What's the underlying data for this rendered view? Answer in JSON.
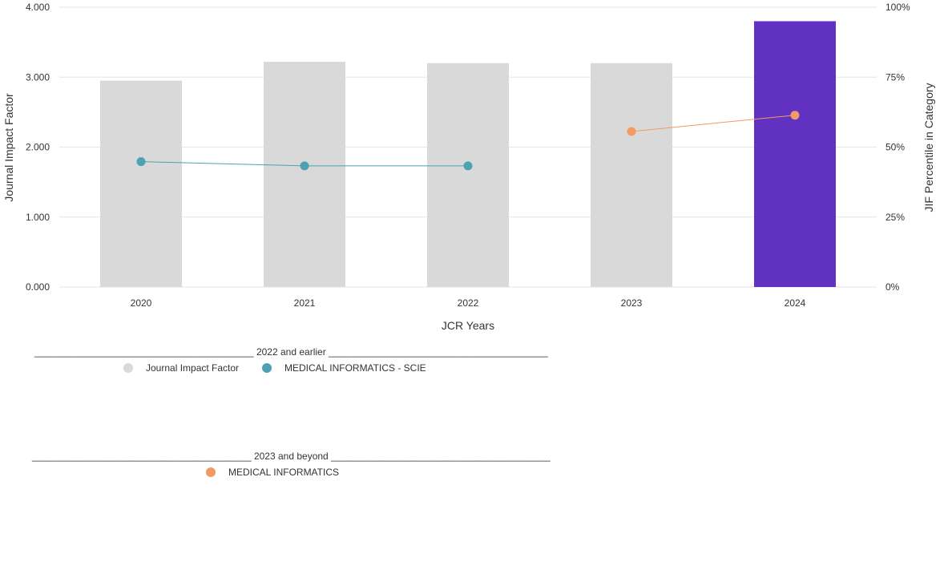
{
  "chart_data": {
    "type": "bar",
    "categories": [
      "2020",
      "2021",
      "2022",
      "2023",
      "2024"
    ],
    "xlabel": "JCR Years",
    "ylabel": "Journal Impact Factor",
    "ylabel_right": "JIF Percentile in Category",
    "ylim": [
      0,
      4
    ],
    "ylim_right": [
      0,
      100
    ],
    "y_ticks": [
      "0.000",
      "1.000",
      "2.000",
      "3.000",
      "4.000"
    ],
    "y_ticks_right": [
      "0%",
      "25%",
      "50%",
      "75%",
      "100%"
    ],
    "grid": true,
    "bars": {
      "name": "Journal Impact Factor",
      "values": [
        2.95,
        3.22,
        3.2,
        3.2,
        3.8
      ],
      "colors": [
        "#d9d9d9",
        "#d9d9d9",
        "#d9d9d9",
        "#d9d9d9",
        "#6131c2"
      ]
    },
    "series": [
      {
        "name": "MEDICAL INFORMATICS - SCIE",
        "axis": "right",
        "color": "#4ca1b3",
        "x": [
          "2020",
          "2021",
          "2022"
        ],
        "values": [
          44.8,
          43.3,
          43.3
        ]
      },
      {
        "name": "MEDICAL INFORMATICS",
        "axis": "right",
        "color": "#f29a63",
        "x": [
          "2023",
          "2024"
        ],
        "values": [
          55.6,
          61.4
        ]
      }
    ]
  },
  "legend": {
    "group1_header": "_________________________________________ 2022 and earlier _________________________________________",
    "group1_items": [
      {
        "label": "Journal Impact Factor",
        "color": "#d9d9d9"
      },
      {
        "label": "MEDICAL INFORMATICS - SCIE",
        "color": "#4ca1b3"
      }
    ],
    "group2_header": "_________________________________________ 2023 and beyond _________________________________________",
    "group2_items": [
      {
        "label": "MEDICAL INFORMATICS",
        "color": "#f29a63"
      }
    ]
  }
}
